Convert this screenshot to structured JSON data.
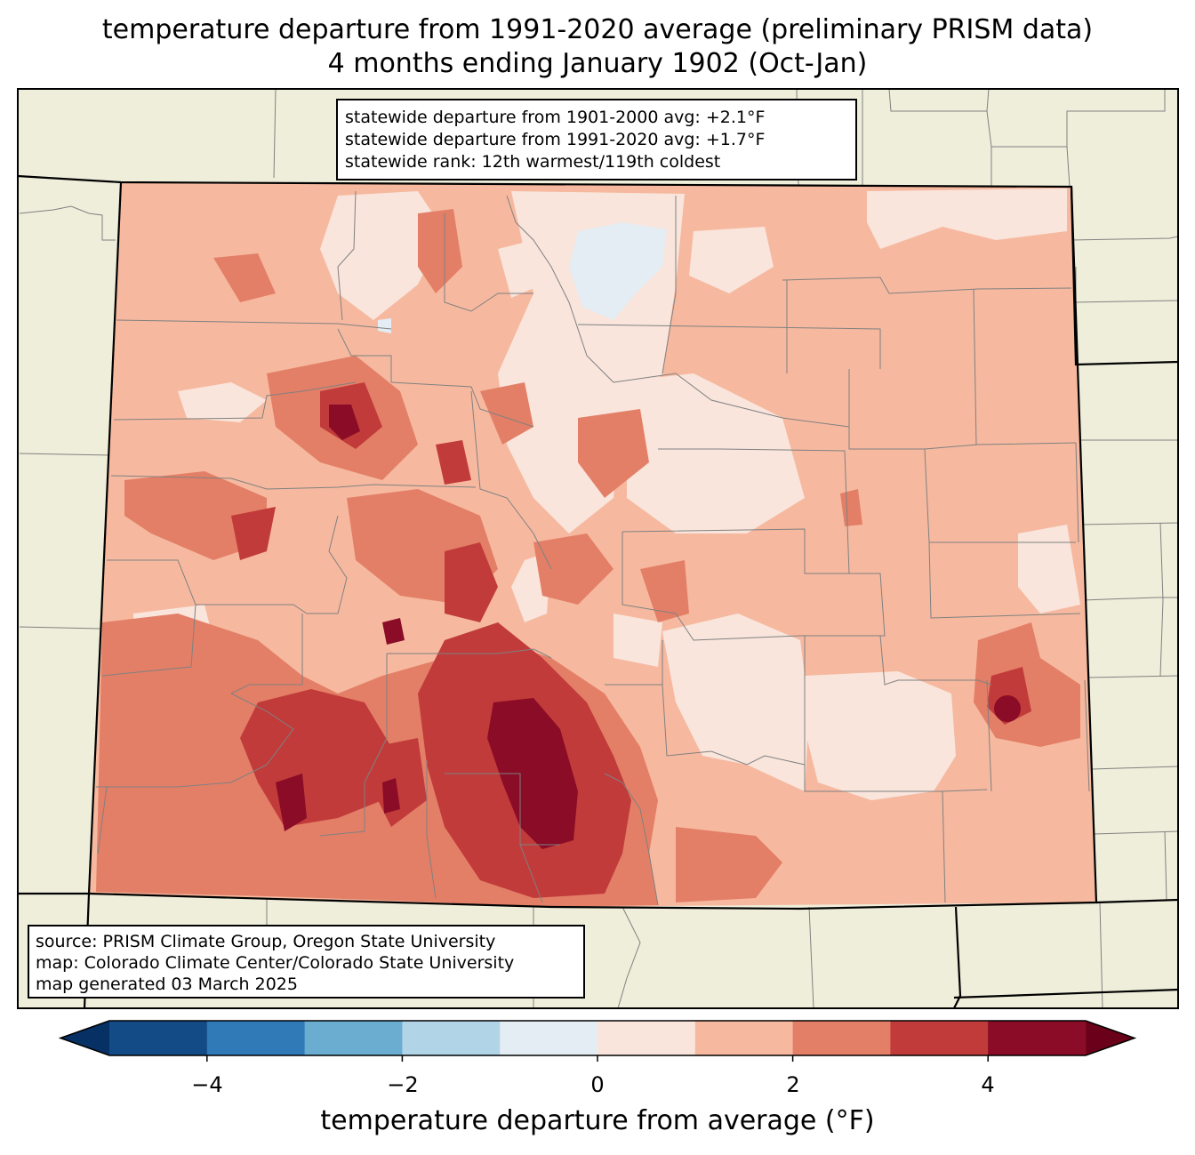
{
  "title_line1": "temperature departure from 1991-2020 average (preliminary PRISM data)",
  "title_line2": "4 months ending January 1902 (Oct-Jan)",
  "stats": {
    "line1": "statewide departure from 1901-2000 avg: +2.1°F",
    "line2": "statewide departure from 1991-2020 avg: +1.7°F",
    "line3": "statewide rank: 12th warmest/119th coldest"
  },
  "source": {
    "line1": "source: PRISM Climate Group, Oregon State University",
    "line2": "map: Colorado Climate Center/Colorado State University",
    "line3": "map generated 03 March 2025"
  },
  "colorbar": {
    "label": "temperature departure from average (°F)",
    "ticks": [
      "−4",
      "−2",
      "0",
      "2",
      "4"
    ],
    "bins": [
      {
        "range": "-5 to -4",
        "color": "#134b87"
      },
      {
        "range": "-4 to -3",
        "color": "#2f7ab7"
      },
      {
        "range": "-3 to -2",
        "color": "#6aadd1"
      },
      {
        "range": "-2 to -1",
        "color": "#b1d5e7"
      },
      {
        "range": "-1 to 0",
        "color": "#e4edf3"
      },
      {
        "range": "0 to 1",
        "color": "#f9e5dc"
      },
      {
        "range": "1 to 2",
        "color": "#f6b99f"
      },
      {
        "range": "2 to 3",
        "color": "#e37f67"
      },
      {
        "range": "3 to 4",
        "color": "#c13b3b"
      },
      {
        "range": "4 to 5",
        "color": "#8a0c26"
      }
    ],
    "under_color": "#073064",
    "over_color": "#6a0019"
  },
  "colors": {
    "land": "#efeedb",
    "county_line": "#808080",
    "state_line": "#000000"
  }
}
